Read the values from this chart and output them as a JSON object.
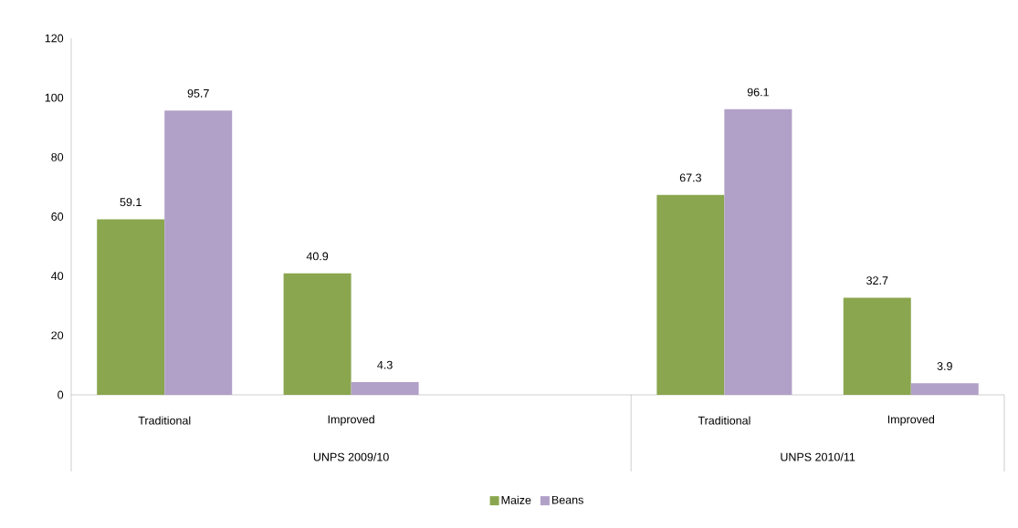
{
  "chart_data": {
    "type": "bar",
    "categories": [
      "Traditional",
      "Improved",
      null,
      "Traditional",
      "Improved"
    ],
    "series": [
      {
        "name": "Maize",
        "color": "#8aa64e",
        "values": [
          59.1,
          40.9,
          null,
          67.3,
          32.7
        ]
      },
      {
        "name": "Beans",
        "color": "#b1a0c7",
        "values": [
          95.7,
          4.3,
          null,
          96.1,
          3.9
        ]
      }
    ],
    "ylim": [
      0,
      120
    ],
    "yticks": [
      0,
      20,
      40,
      60,
      80,
      100,
      120
    ],
    "data_labels": true,
    "legend": "bottom",
    "grid": false,
    "annotations": [
      "UNPS 2009/10",
      "UNPS 2010/11"
    ]
  }
}
